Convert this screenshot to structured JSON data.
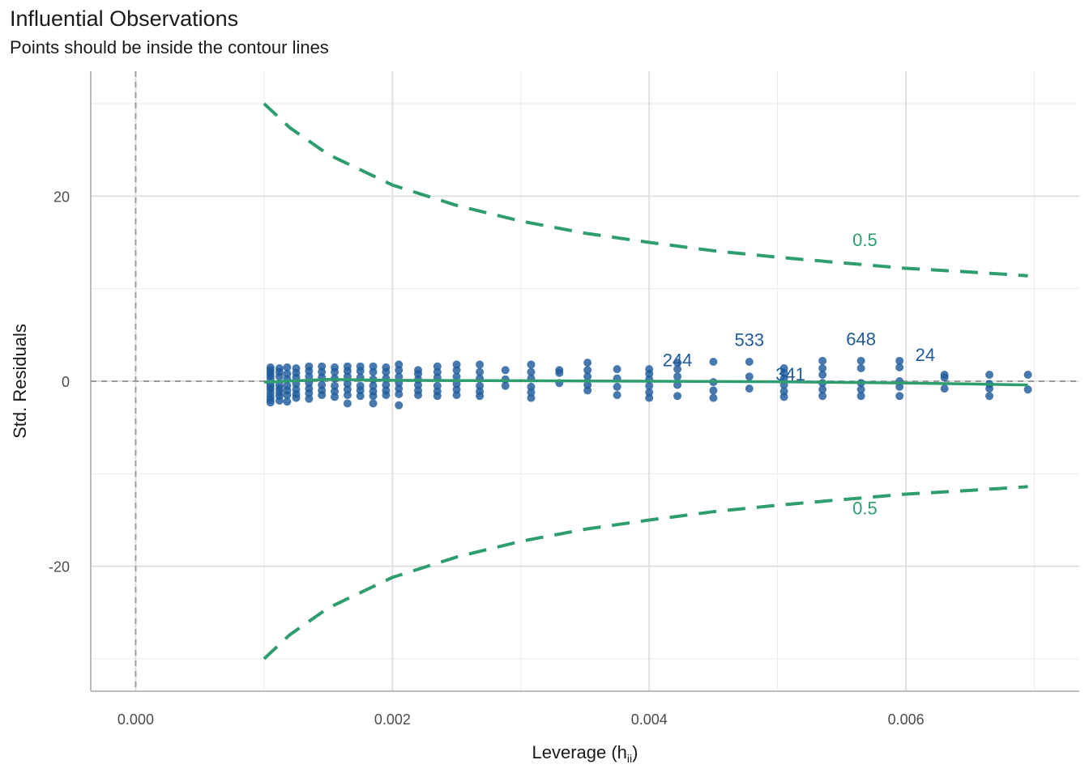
{
  "chart_data": {
    "type": "scatter",
    "title": "Influential Observations",
    "subtitle": "Points should be inside the contour lines",
    "xlabel": "Leverage (h",
    "xlabel_subscript": "ii",
    "xlabel_close": ")",
    "ylabel": "Std. Residuals",
    "xlim": [
      -0.00035,
      0.00735
    ],
    "ylim": [
      -33.5,
      33.5
    ],
    "x_ticks": [
      {
        "value": 0.0,
        "label": "0.000"
      },
      {
        "value": 0.002,
        "label": "0.002"
      },
      {
        "value": 0.004,
        "label": "0.004"
      },
      {
        "value": 0.006,
        "label": "0.006"
      }
    ],
    "y_ticks": [
      {
        "value": 20,
        "label": "20"
      },
      {
        "value": 0,
        "label": "0"
      },
      {
        "value": -20,
        "label": "-20"
      }
    ],
    "grid": true,
    "reference_lines": {
      "vertical_x": 0,
      "horizontal_y": 0
    },
    "colors": {
      "points": "#1f5b9c",
      "contour": "#2e9e6e",
      "loess": "#2e9e6e",
      "reference": "#9a9a9a",
      "label": "#1f5b9c"
    },
    "contour": {
      "label": "0.5",
      "upper": [
        [
          0.001,
          30.0
        ],
        [
          0.0012,
          27.4
        ],
        [
          0.0015,
          24.5
        ],
        [
          0.002,
          21.2
        ],
        [
          0.0025,
          19.0
        ],
        [
          0.003,
          17.3
        ],
        [
          0.0035,
          16.0
        ],
        [
          0.004,
          15.0
        ],
        [
          0.0045,
          14.1
        ],
        [
          0.005,
          13.4
        ],
        [
          0.0055,
          12.8
        ],
        [
          0.006,
          12.2
        ],
        [
          0.0065,
          11.8
        ],
        [
          0.00695,
          11.4
        ]
      ],
      "lower": [
        [
          0.001,
          -30.0
        ],
        [
          0.0012,
          -27.4
        ],
        [
          0.0015,
          -24.5
        ],
        [
          0.002,
          -21.2
        ],
        [
          0.0025,
          -19.0
        ],
        [
          0.003,
          -17.3
        ],
        [
          0.0035,
          -16.0
        ],
        [
          0.004,
          -15.0
        ],
        [
          0.0045,
          -14.1
        ],
        [
          0.005,
          -13.4
        ],
        [
          0.0055,
          -12.8
        ],
        [
          0.006,
          -12.2
        ],
        [
          0.0065,
          -11.8
        ],
        [
          0.00695,
          -11.4
        ]
      ],
      "label_upper_pos": [
        0.00568,
        14.6
      ],
      "label_lower_pos": [
        0.00568,
        -14.4
      ]
    },
    "loess": [
      [
        0.001,
        -0.1
      ],
      [
        0.0015,
        0.2
      ],
      [
        0.002,
        0.1
      ],
      [
        0.003,
        0.05
      ],
      [
        0.004,
        0.0
      ],
      [
        0.005,
        -0.05
      ],
      [
        0.006,
        -0.2
      ],
      [
        0.0065,
        -0.3
      ],
      [
        0.00695,
        -0.4
      ]
    ],
    "points": [
      [
        0.00105,
        1.5
      ],
      [
        0.00105,
        1.2
      ],
      [
        0.00105,
        0.9
      ],
      [
        0.00105,
        0.6
      ],
      [
        0.00105,
        0.3
      ],
      [
        0.00105,
        -0.3
      ],
      [
        0.00105,
        -0.6
      ],
      [
        0.00105,
        -0.9
      ],
      [
        0.00105,
        -1.3
      ],
      [
        0.00105,
        -1.7
      ],
      [
        0.00105,
        -2.0
      ],
      [
        0.00105,
        -2.3
      ],
      [
        0.00112,
        1.4
      ],
      [
        0.00112,
        1.0
      ],
      [
        0.00112,
        0.5
      ],
      [
        0.00112,
        -0.4
      ],
      [
        0.00112,
        -0.8
      ],
      [
        0.00112,
        -1.2
      ],
      [
        0.00112,
        -1.6
      ],
      [
        0.00112,
        -2.1
      ],
      [
        0.00118,
        1.5
      ],
      [
        0.00118,
        0.8
      ],
      [
        0.00118,
        0.2
      ],
      [
        0.00118,
        -0.5
      ],
      [
        0.00118,
        -1.0
      ],
      [
        0.00118,
        -1.5
      ],
      [
        0.00118,
        -2.2
      ],
      [
        0.00125,
        1.4
      ],
      [
        0.00125,
        0.9
      ],
      [
        0.00125,
        0.4
      ],
      [
        0.00125,
        -0.3
      ],
      [
        0.00125,
        -0.9
      ],
      [
        0.00125,
        -1.4
      ],
      [
        0.00125,
        -1.8
      ],
      [
        0.00135,
        1.6
      ],
      [
        0.00135,
        1.1
      ],
      [
        0.00135,
        0.5
      ],
      [
        0.00135,
        -0.2
      ],
      [
        0.00135,
        -0.8
      ],
      [
        0.00135,
        -1.3
      ],
      [
        0.00135,
        -1.9
      ],
      [
        0.00145,
        1.6
      ],
      [
        0.00145,
        1.0
      ],
      [
        0.00145,
        0.4
      ],
      [
        0.00145,
        -0.4
      ],
      [
        0.00145,
        -1.0
      ],
      [
        0.00145,
        -1.5
      ],
      [
        0.00155,
        1.5
      ],
      [
        0.00155,
        1.0
      ],
      [
        0.00155,
        0.3
      ],
      [
        0.00155,
        -0.5
      ],
      [
        0.00155,
        -1.1
      ],
      [
        0.00155,
        -1.7
      ],
      [
        0.00165,
        1.6
      ],
      [
        0.00165,
        1.1
      ],
      [
        0.00165,
        0.5
      ],
      [
        0.00165,
        -0.3
      ],
      [
        0.00165,
        -0.9
      ],
      [
        0.00165,
        -1.5
      ],
      [
        0.00165,
        -2.4
      ],
      [
        0.00175,
        1.6
      ],
      [
        0.00175,
        1.1
      ],
      [
        0.00175,
        0.4
      ],
      [
        0.00175,
        -0.5
      ],
      [
        0.00175,
        -1.0
      ],
      [
        0.00175,
        -1.6
      ],
      [
        0.00185,
        1.6
      ],
      [
        0.00185,
        1.0
      ],
      [
        0.00185,
        0.2
      ],
      [
        0.00185,
        -0.5
      ],
      [
        0.00185,
        -1.1
      ],
      [
        0.00185,
        -1.6
      ],
      [
        0.00185,
        -2.4
      ],
      [
        0.00195,
        1.5
      ],
      [
        0.00195,
        1.0
      ],
      [
        0.00195,
        0.3
      ],
      [
        0.00195,
        -0.4
      ],
      [
        0.00195,
        -1.0
      ],
      [
        0.00195,
        -1.5
      ],
      [
        0.00205,
        1.8
      ],
      [
        0.00205,
        1.2
      ],
      [
        0.00205,
        0.5
      ],
      [
        0.00205,
        -0.2
      ],
      [
        0.00205,
        -0.8
      ],
      [
        0.00205,
        -1.4
      ],
      [
        0.00205,
        -2.6
      ],
      [
        0.0022,
        1.2
      ],
      [
        0.0022,
        0.8
      ],
      [
        0.0022,
        0.2
      ],
      [
        0.0022,
        -0.4
      ],
      [
        0.0022,
        -1.0
      ],
      [
        0.0022,
        -1.5
      ],
      [
        0.00235,
        1.6
      ],
      [
        0.00235,
        1.0
      ],
      [
        0.00235,
        0.4
      ],
      [
        0.00235,
        -0.5
      ],
      [
        0.00235,
        -1.1
      ],
      [
        0.00235,
        -1.6
      ],
      [
        0.0025,
        1.8
      ],
      [
        0.0025,
        1.2
      ],
      [
        0.0025,
        0.5
      ],
      [
        0.0025,
        -0.3
      ],
      [
        0.0025,
        -0.9
      ],
      [
        0.0025,
        -1.5
      ],
      [
        0.00268,
        1.8
      ],
      [
        0.00268,
        1.0
      ],
      [
        0.00268,
        0.3
      ],
      [
        0.00268,
        -0.5
      ],
      [
        0.00268,
        -1.1
      ],
      [
        0.00268,
        -1.6
      ],
      [
        0.00288,
        1.2
      ],
      [
        0.00288,
        0.2
      ],
      [
        0.00288,
        -0.5
      ],
      [
        0.00308,
        1.8
      ],
      [
        0.00308,
        1.0
      ],
      [
        0.00308,
        0.3
      ],
      [
        0.00308,
        -0.6
      ],
      [
        0.00308,
        -1.2
      ],
      [
        0.00308,
        -1.8
      ],
      [
        0.0033,
        1.2
      ],
      [
        0.0033,
        0.9
      ],
      [
        0.0033,
        -0.2
      ],
      [
        0.00352,
        2.0
      ],
      [
        0.00352,
        1.2
      ],
      [
        0.00352,
        0.5
      ],
      [
        0.00352,
        -0.4
      ],
      [
        0.00352,
        -1.0
      ],
      [
        0.00375,
        1.3
      ],
      [
        0.00375,
        0.3
      ],
      [
        0.00375,
        -0.6
      ],
      [
        0.00375,
        -1.5
      ],
      [
        0.004,
        1.3
      ],
      [
        0.004,
        0.8
      ],
      [
        0.004,
        0.2
      ],
      [
        0.004,
        -0.5
      ],
      [
        0.004,
        -1.2
      ],
      [
        0.004,
        -1.8
      ],
      [
        0.00422,
        2.0
      ],
      [
        0.00422,
        1.3
      ],
      [
        0.00422,
        0.5
      ],
      [
        0.00422,
        -0.4
      ],
      [
        0.00422,
        -1.6
      ],
      [
        0.0045,
        2.1
      ],
      [
        0.0045,
        -0.1
      ],
      [
        0.0045,
        -1.0
      ],
      [
        0.0045,
        -1.8
      ],
      [
        0.00478,
        2.1
      ],
      [
        0.00478,
        0.5
      ],
      [
        0.00478,
        -0.8
      ],
      [
        0.00505,
        1.4
      ],
      [
        0.00505,
        0.9
      ],
      [
        0.00505,
        0.3
      ],
      [
        0.00505,
        -0.4
      ],
      [
        0.00505,
        -1.1
      ],
      [
        0.00505,
        -1.7
      ],
      [
        0.00535,
        2.2
      ],
      [
        0.00535,
        1.4
      ],
      [
        0.00535,
        0.7
      ],
      [
        0.00535,
        -0.2
      ],
      [
        0.00535,
        -0.9
      ],
      [
        0.00535,
        -1.6
      ],
      [
        0.00565,
        2.2
      ],
      [
        0.00565,
        1.4
      ],
      [
        0.00565,
        -0.2
      ],
      [
        0.00565,
        -0.9
      ],
      [
        0.00565,
        -1.6
      ],
      [
        0.00595,
        2.2
      ],
      [
        0.00595,
        1.5
      ],
      [
        0.00595,
        0.0
      ],
      [
        0.00595,
        -0.6
      ],
      [
        0.00595,
        -1.6
      ],
      [
        0.0063,
        0.7
      ],
      [
        0.0063,
        0.4
      ],
      [
        0.0063,
        -0.8
      ],
      [
        0.00665,
        0.7
      ],
      [
        0.00665,
        -0.3
      ],
      [
        0.00665,
        -0.8
      ],
      [
        0.00665,
        -1.6
      ],
      [
        0.00695,
        0.7
      ],
      [
        0.00695,
        -0.9
      ]
    ],
    "labeled_points": [
      {
        "label": "244",
        "x": 0.00422,
        "y": 1.6
      },
      {
        "label": "533",
        "x": 0.00478,
        "y": 3.8
      },
      {
        "label": "341",
        "x": 0.0051,
        "y": 0.1
      },
      {
        "label": "648",
        "x": 0.00565,
        "y": 3.9
      },
      {
        "label": "24",
        "x": 0.00615,
        "y": 2.2
      }
    ]
  }
}
